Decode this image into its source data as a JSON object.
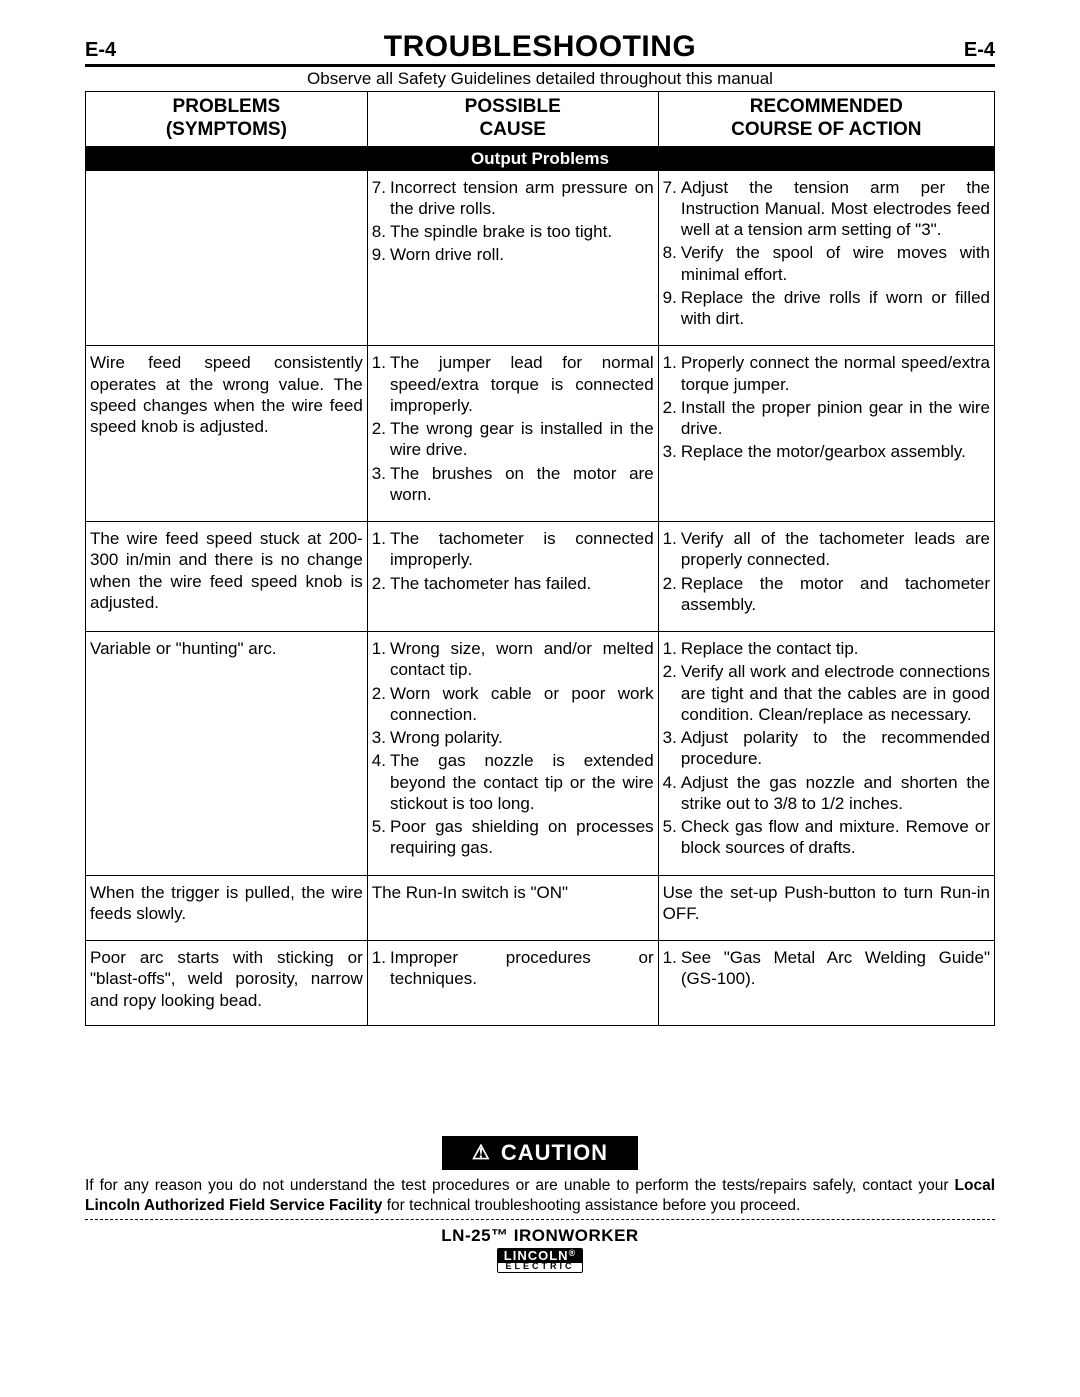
{
  "page_num_left": "E-4",
  "page_num_right": "E-4",
  "title": "TROUBLESHOOTING",
  "safety_note": "Observe all Safety Guidelines detailed throughout this manual",
  "col_headers": {
    "problems_l1": "PROBLEMS",
    "problems_l2": "(SYMPTOMS)",
    "cause_l1": "POSSIBLE",
    "cause_l2": "CAUSE",
    "action_l1": "RECOMMENDED",
    "action_l2": "COURSE OF ACTION"
  },
  "section_band": "Output Problems",
  "rows": [
    {
      "problem": "",
      "causes": [
        {
          "n": "7.",
          "t": "Incorrect tension arm pressure on the drive rolls."
        },
        {
          "n": "8.",
          "t": "The spindle brake is too tight."
        },
        {
          "n": "9.",
          "t": "Worn drive roll."
        }
      ],
      "actions": [
        {
          "n": "7.",
          "t": "Adjust the tension arm per the Instruction Manual. Most electrodes feed well at a tension arm setting of \"3\"."
        },
        {
          "n": "8.",
          "t": "Verify the spool of wire moves with minimal effort."
        },
        {
          "n": "9.",
          "t": "Replace the drive rolls if worn or filled with dirt."
        }
      ]
    },
    {
      "problem": "Wire feed speed consistently operates at the wrong value. The speed changes when the wire feed speed knob is adjusted.",
      "causes": [
        {
          "n": "1.",
          "t": "The jumper lead for normal speed/extra torque is connected improperly."
        },
        {
          "n": "2.",
          "t": "The wrong gear is installed in the wire drive."
        },
        {
          "n": "3.",
          "t": "The brushes on the motor are worn."
        }
      ],
      "actions": [
        {
          "n": "1.",
          "t": "Properly connect the normal speed/extra torque jumper."
        },
        {
          "n": "2.",
          "t": "Install the proper pinion gear in the wire drive."
        },
        {
          "n": "3.",
          "t": "Replace the motor/gearbox assembly."
        }
      ]
    },
    {
      "problem": "The wire feed speed stuck at 200-300 in/min and there is no change when the wire feed speed knob is adjusted.",
      "causes": [
        {
          "n": "1.",
          "t": "The tachometer is connected improperly."
        },
        {
          "n": "2.",
          "t": "The tachometer has failed."
        }
      ],
      "actions": [
        {
          "n": "1.",
          "t": "Verify all of the tachometer leads are properly connected."
        },
        {
          "n": "2.",
          "t": "Replace the motor and tachometer assembly."
        }
      ]
    },
    {
      "problem": "Variable or \"hunting\" arc.",
      "causes": [
        {
          "n": "1.",
          "t": "Wrong size, worn and/or melted contact tip."
        },
        {
          "n": "2.",
          "t": "Worn work cable or poor work connection."
        },
        {
          "n": "3.",
          "t": "Wrong polarity."
        },
        {
          "n": "4.",
          "t": "The gas nozzle is extended beyond the contact tip or the wire stickout is too long."
        },
        {
          "n": "5.",
          "t": "Poor gas shielding on processes requiring gas."
        }
      ],
      "actions": [
        {
          "n": "1.",
          "t": "Replace the contact tip."
        },
        {
          "n": "2.",
          "t": "Verify all work and electrode connections are tight and that the cables are in good condition. Clean/replace as necessary."
        },
        {
          "n": "3.",
          "t": "Adjust polarity to the recommended procedure."
        },
        {
          "n": "4.",
          "t": "Adjust the gas nozzle and shorten the strike out to 3/8 to 1/2 inches."
        },
        {
          "n": "5.",
          "t": "Check gas flow and mixture. Remove or block sources of drafts."
        }
      ]
    },
    {
      "problem": "When the trigger is pulled, the wire feeds slowly.",
      "causes": [
        {
          "n": "",
          "t": "The Run-In switch is \"ON\""
        }
      ],
      "actions": [
        {
          "n": "",
          "t": "Use the set-up Push-button to turn Run-in OFF."
        }
      ]
    },
    {
      "problem": "Poor arc starts with sticking or \"blast-offs\", weld porosity, narrow and ropy looking bead.",
      "causes": [
        {
          "n": "1.",
          "t": "Improper procedures or techniques."
        }
      ],
      "actions": [
        {
          "n": "1.",
          "t": "See \"Gas Metal Arc Welding Guide\" (GS-100)."
        }
      ]
    }
  ],
  "caution_label": "CAUTION",
  "caution_text_before": "If for any reason you do not understand the test procedures or are unable to perform the tests/repairs safely, contact your ",
  "caution_text_bold": "Local Lincoln Authorized Field Service Facility",
  "caution_text_after": " for technical troubleshooting assistance before you proceed.",
  "footer_model": "LN-25™ IRONWORKER",
  "logo_top": "LINCOLN",
  "logo_reg": "®",
  "logo_bottom": "ELECTRIC"
}
